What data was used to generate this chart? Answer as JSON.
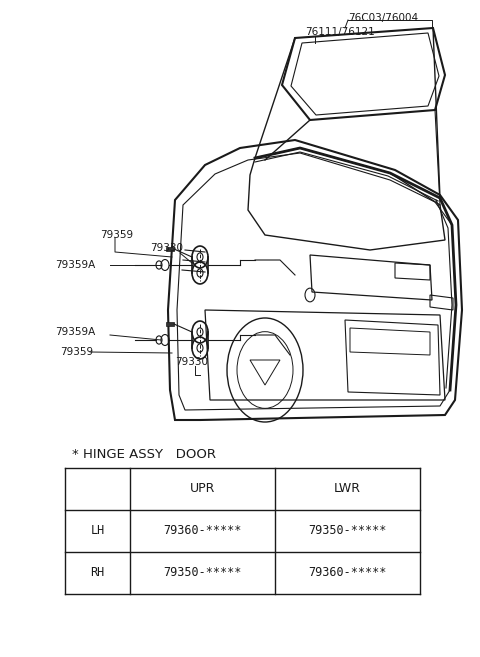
{
  "bg_color": "#ffffff",
  "line_color": "#1a1a1a",
  "title": "* HINGE ASSY   DOOR",
  "table": {
    "headers": [
      "",
      "UPR",
      "LWR"
    ],
    "rows": [
      [
        "LH",
        "79360-*****",
        "79350-*****"
      ],
      [
        "RH",
        "79350-*****",
        "79360-*****"
      ]
    ]
  },
  "labels": {
    "76C03_76004": "76C03/76004",
    "76111_76121": "76111/76121",
    "79359_upper": "79359",
    "79330_upper": "79330",
    "79359A_upper": "79359A",
    "79359A_lower": "79359A",
    "79359_lower": "79359",
    "79330_lower": "79330"
  },
  "figsize": [
    4.8,
    6.57
  ],
  "dpi": 100
}
